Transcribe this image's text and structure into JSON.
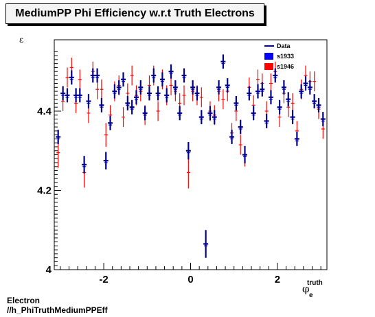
{
  "chart_data": {
    "type": "scatter",
    "title": "MediumPP Phi Efficiency w.r.t Truth Electrons",
    "xlabel_main": "φ",
    "xlabel_sub": "e",
    "xlabel_sup": "truth",
    "ylabel": "ε",
    "xlim": [
      -3.14,
      3.14
    ],
    "ylim": [
      4.0,
      4.58
    ],
    "xticks": [
      {
        "v": -2,
        "label": "-2"
      },
      {
        "v": 0,
        "label": "0"
      },
      {
        "v": 2,
        "label": "2"
      }
    ],
    "yticks": [
      {
        "v": 4.0,
        "label": "4"
      },
      {
        "v": 4.2,
        "label": "4.2"
      },
      {
        "v": 4.4,
        "label": "4.4"
      }
    ],
    "legend_position": "top-right",
    "series": [
      {
        "name": "Data",
        "color": "#00008b",
        "x": [
          -3.05,
          -2.94,
          -2.84,
          -2.74,
          -2.64,
          -2.55,
          -2.45,
          -2.35,
          -2.25,
          -2.15,
          -2.05,
          -1.95,
          -1.85,
          -1.75,
          -1.65,
          -1.55,
          -1.45,
          -1.35,
          -1.25,
          -1.15,
          -1.05,
          -0.95,
          -0.85,
          -0.75,
          -0.65,
          -0.55,
          -0.45,
          -0.35,
          -0.25,
          -0.15,
          -0.05,
          0.05,
          0.15,
          0.25,
          0.35,
          0.45,
          0.55,
          0.65,
          0.75,
          0.85,
          0.95,
          1.05,
          1.15,
          1.25,
          1.35,
          1.45,
          1.55,
          1.65,
          1.75,
          1.85,
          1.95,
          2.05,
          2.15,
          2.25,
          2.35,
          2.45,
          2.55,
          2.65,
          2.75,
          2.85,
          2.95,
          3.05
        ],
        "values": [
          4.335,
          4.445,
          4.44,
          4.485,
          4.44,
          4.44,
          4.265,
          4.425,
          4.49,
          4.49,
          4.415,
          4.275,
          4.37,
          4.45,
          4.46,
          4.48,
          4.42,
          4.41,
          4.435,
          4.46,
          4.395,
          4.445,
          4.49,
          4.445,
          4.48,
          4.44,
          4.5,
          4.46,
          4.395,
          4.49,
          4.3,
          4.46,
          4.445,
          4.385,
          4.065,
          4.395,
          4.385,
          4.46,
          4.525,
          4.465,
          4.335,
          4.42,
          4.36,
          4.29,
          4.445,
          4.395,
          4.45,
          4.455,
          4.375,
          4.435,
          4.49,
          4.41,
          4.46,
          4.43,
          4.385,
          4.33,
          4.45,
          4.47,
          4.46,
          4.425,
          4.415,
          4.38
        ],
        "errors": [
          0.018,
          0.018,
          0.018,
          0.018,
          0.018,
          0.018,
          0.022,
          0.018,
          0.018,
          0.018,
          0.018,
          0.022,
          0.018,
          0.018,
          0.018,
          0.018,
          0.018,
          0.018,
          0.018,
          0.018,
          0.018,
          0.018,
          0.018,
          0.018,
          0.018,
          0.018,
          0.018,
          0.018,
          0.018,
          0.018,
          0.022,
          0.018,
          0.018,
          0.018,
          0.035,
          0.018,
          0.018,
          0.018,
          0.018,
          0.018,
          0.018,
          0.018,
          0.018,
          0.022,
          0.018,
          0.018,
          0.018,
          0.018,
          0.018,
          0.018,
          0.018,
          0.018,
          0.018,
          0.018,
          0.018,
          0.018,
          0.018,
          0.018,
          0.018,
          0.018,
          0.018,
          0.018
        ]
      },
      {
        "name": "s1933",
        "color": "#0000ff",
        "x": [
          -3.05,
          -2.94,
          -2.84,
          -2.74,
          -2.64,
          -2.55,
          -2.45,
          -2.35,
          -2.25,
          -2.15,
          -2.05,
          -1.95,
          -1.85,
          -1.75,
          -1.65,
          -1.55,
          -1.45,
          -1.35,
          -1.25,
          -1.15,
          -1.05,
          -0.95,
          -0.85,
          -0.75,
          -0.65,
          -0.55,
          -0.45,
          -0.35,
          -0.25,
          -0.15,
          -0.05,
          0.05,
          0.15,
          0.25,
          0.35,
          0.45,
          0.55,
          0.65,
          0.75,
          0.85,
          0.95,
          1.05,
          1.15,
          1.25,
          1.35,
          1.45,
          1.55,
          1.65,
          1.75,
          1.85,
          1.95,
          2.05,
          2.15,
          2.25,
          2.35,
          2.45,
          2.55,
          2.65,
          2.75,
          2.85,
          2.95,
          3.05
        ],
        "values": [
          4.33,
          4.44,
          4.435,
          4.48,
          4.435,
          4.435,
          4.26,
          4.42,
          4.485,
          4.485,
          4.41,
          4.27,
          4.365,
          4.445,
          4.455,
          4.475,
          4.415,
          4.405,
          4.43,
          4.455,
          4.39,
          4.44,
          4.485,
          4.44,
          4.475,
          4.435,
          4.495,
          4.455,
          4.39,
          4.485,
          4.295,
          4.455,
          4.44,
          4.38,
          4.06,
          4.39,
          4.38,
          4.455,
          4.52,
          4.46,
          4.33,
          4.415,
          4.355,
          4.285,
          4.44,
          4.39,
          4.445,
          4.45,
          4.37,
          4.43,
          4.485,
          4.405,
          4.455,
          4.425,
          4.38,
          4.325,
          4.445,
          4.465,
          4.455,
          4.42,
          4.41,
          4.375
        ],
        "errors": [
          0.01,
          0.01,
          0.01,
          0.01,
          0.01,
          0.01,
          0.01,
          0.01,
          0.01,
          0.01,
          0.01,
          0.01,
          0.01,
          0.01,
          0.01,
          0.01,
          0.01,
          0.01,
          0.01,
          0.01,
          0.01,
          0.01,
          0.01,
          0.01,
          0.01,
          0.01,
          0.01,
          0.01,
          0.01,
          0.01,
          0.01,
          0.01,
          0.01,
          0.01,
          0.01,
          0.01,
          0.01,
          0.01,
          0.01,
          0.01,
          0.01,
          0.01,
          0.01,
          0.01,
          0.01,
          0.01,
          0.01,
          0.01,
          0.01,
          0.01,
          0.01,
          0.01,
          0.01,
          0.01,
          0.01,
          0.01,
          0.01,
          0.01,
          0.01,
          0.01,
          0.01,
          0.01
        ]
      },
      {
        "name": "s1946",
        "color": "#ff0000",
        "x": [
          -3.05,
          -2.94,
          -2.84,
          -2.74,
          -2.64,
          -2.55,
          -2.45,
          -2.35,
          -2.25,
          -2.15,
          -2.05,
          -1.95,
          -1.85,
          -1.75,
          -1.65,
          -1.55,
          -1.45,
          -1.35,
          -1.25,
          -1.15,
          -1.05,
          -0.95,
          -0.85,
          -0.75,
          -0.65,
          -0.55,
          -0.45,
          -0.35,
          -0.25,
          -0.15,
          -0.05,
          0.05,
          0.15,
          0.25,
          0.35,
          0.45,
          0.55,
          0.65,
          0.75,
          0.85,
          0.95,
          1.05,
          1.15,
          1.25,
          1.35,
          1.45,
          1.55,
          1.65,
          1.75,
          1.85,
          1.95,
          2.05,
          2.15,
          2.25,
          2.35,
          2.45,
          2.55,
          2.65,
          2.75,
          2.85,
          2.95,
          3.05
        ],
        "values": [
          4.295,
          4.425,
          4.485,
          4.51,
          4.42,
          4.48,
          4.245,
          4.395,
          4.5,
          4.455,
          4.455,
          4.34,
          4.39,
          4.45,
          4.465,
          4.385,
          4.445,
          4.49,
          4.44,
          4.45,
          4.39,
          4.465,
          4.49,
          4.4,
          4.48,
          4.44,
          4.465,
          4.45,
          4.42,
          4.44,
          4.245,
          4.45,
          4.44,
          4.435,
          4.06,
          4.4,
          4.39,
          4.45,
          4.43,
          4.45,
          4.345,
          4.4,
          4.315,
          4.285,
          4.46,
          4.415,
          4.48,
          4.47,
          4.4,
          4.47,
          4.5,
          4.385,
          4.445,
          4.41,
          4.42,
          4.35,
          4.455,
          4.49,
          4.475,
          4.475,
          4.405,
          4.355
        ],
        "errors": [
          0.038,
          0.025,
          0.025,
          0.025,
          0.025,
          0.025,
          0.038,
          0.025,
          0.025,
          0.025,
          0.025,
          0.03,
          0.025,
          0.025,
          0.025,
          0.025,
          0.025,
          0.025,
          0.025,
          0.025,
          0.025,
          0.025,
          0.025,
          0.025,
          0.025,
          0.025,
          0.025,
          0.025,
          0.025,
          0.025,
          0.04,
          0.025,
          0.025,
          0.025,
          0.03,
          0.025,
          0.025,
          0.025,
          0.025,
          0.025,
          0.025,
          0.025,
          0.025,
          0.025,
          0.025,
          0.025,
          0.025,
          0.025,
          0.025,
          0.025,
          0.025,
          0.025,
          0.025,
          0.025,
          0.025,
          0.025,
          0.025,
          0.025,
          0.025,
          0.025,
          0.025,
          0.025
        ]
      }
    ]
  },
  "footer": {
    "line1": "Electron",
    "line2": "//h_PhiTruthMediumPPEff"
  }
}
